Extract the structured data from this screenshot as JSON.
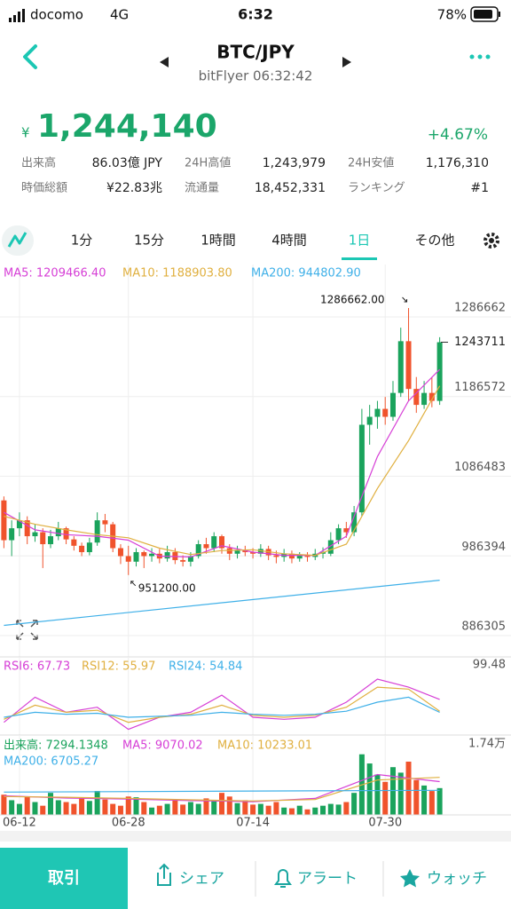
{
  "status_bar": {
    "carrier": "docomo",
    "network": "4G",
    "time": "6:32",
    "battery": "78%"
  },
  "header": {
    "pair": "BTC/JPY",
    "subtitle": "bitFlyer 06:32:42"
  },
  "quote": {
    "currency": "¥",
    "price": "1,244,140",
    "change": "+4.67%",
    "stats": [
      [
        "出来高",
        "86.03億 JPY",
        "24H高値",
        "1,243,979",
        "24H安値",
        "1,176,310"
      ],
      [
        "時価総額",
        "¥22.83兆",
        "流通量",
        "18,452,331",
        "ランキング",
        "#1"
      ]
    ]
  },
  "tabs": {
    "items": [
      "1分",
      "15分",
      "1時間",
      "4時間",
      "1日",
      "その他"
    ],
    "active": 4
  },
  "chart_data": [
    {
      "type": "candlestick",
      "up_color": "#1aa35c",
      "down_color": "#f0532c",
      "xlim": [
        -0.5,
        56.5
      ],
      "ylim": [
        848400,
        1341300
      ],
      "yticks": [
        1286662,
        1186572,
        1086483,
        986394,
        886305
      ],
      "current_price": 1243711,
      "high_label": {
        "index": 52,
        "value": 1286662,
        "label": "1286662.00"
      },
      "low_label": {
        "index": 16,
        "value": 951200,
        "label": "951200.00"
      },
      "candles": [
        [
          1045000,
          1050000,
          985000,
          995000
        ],
        [
          995000,
          1020000,
          975000,
          1010000
        ],
        [
          1010000,
          1030000,
          1000000,
          1020000
        ],
        [
          1020000,
          1025000,
          990000,
          1000000
        ],
        [
          1000000,
          1015000,
          993000,
          1005000
        ],
        [
          1005000,
          1010000,
          960000,
          990000
        ],
        [
          990000,
          1008000,
          985000,
          1000000
        ],
        [
          1000000,
          1018000,
          995000,
          1010000
        ],
        [
          1010000,
          1012000,
          990000,
          996000
        ],
        [
          996000,
          1000000,
          982000,
          988000
        ],
        [
          988000,
          992000,
          975000,
          980000
        ],
        [
          980000,
          998000,
          976000,
          992000
        ],
        [
          992000,
          1030000,
          988000,
          1020000
        ],
        [
          1020000,
          1028000,
          1005000,
          1015000
        ],
        [
          1015000,
          1018000,
          980000,
          985000
        ],
        [
          985000,
          990000,
          965000,
          975000
        ],
        [
          975000,
          988000,
          951200,
          968000
        ],
        [
          968000,
          985000,
          962000,
          980000
        ],
        [
          980000,
          982000,
          960000,
          975000
        ],
        [
          975000,
          985000,
          968000,
          978000
        ],
        [
          978000,
          984000,
          966000,
          972000
        ],
        [
          972000,
          988000,
          968000,
          980000
        ],
        [
          980000,
          985000,
          965000,
          970000
        ],
        [
          970000,
          976000,
          962000,
          968000
        ],
        [
          968000,
          980000,
          962000,
          975000
        ],
        [
          975000,
          995000,
          972000,
          990000
        ],
        [
          990000,
          998000,
          978000,
          985000
        ],
        [
          985000,
          1005000,
          980000,
          1000000
        ],
        [
          1000000,
          1002000,
          978000,
          985000
        ],
        [
          985000,
          990000,
          970000,
          978000
        ],
        [
          978000,
          988000,
          972000,
          982000
        ],
        [
          982000,
          988000,
          975000,
          980000
        ],
        [
          980000,
          985000,
          972000,
          978000
        ],
        [
          978000,
          990000,
          974000,
          984000
        ],
        [
          984000,
          988000,
          970000,
          976000
        ],
        [
          976000,
          982000,
          966000,
          974000
        ],
        [
          974000,
          984000,
          968000,
          978000
        ],
        [
          978000,
          982000,
          966000,
          972000
        ],
        [
          972000,
          980000,
          968000,
          976000
        ],
        [
          976000,
          980000,
          968000,
          974000
        ],
        [
          974000,
          984000,
          970000,
          978000
        ],
        [
          978000,
          986000,
          972000,
          980000
        ],
        [
          978000,
          1005000,
          975000,
          995000
        ],
        [
          995000,
          1015000,
          990000,
          1010000
        ],
        [
          1010000,
          1018000,
          998000,
          1005000
        ],
        [
          1005000,
          1038000,
          1000000,
          1030000
        ],
        [
          1030000,
          1160000,
          1025000,
          1140000
        ],
        [
          1140000,
          1165000,
          1115000,
          1150000
        ],
        [
          1150000,
          1170000,
          1135000,
          1160000
        ],
        [
          1160000,
          1175000,
          1140000,
          1150000
        ],
        [
          1150000,
          1195000,
          1145000,
          1180000
        ],
        [
          1180000,
          1262000,
          1175000,
          1245000
        ],
        [
          1245000,
          1286662,
          1170000,
          1185000
        ],
        [
          1185000,
          1200000,
          1155000,
          1165000
        ],
        [
          1165000,
          1195000,
          1160000,
          1180000
        ],
        [
          1180000,
          1200000,
          1162000,
          1170000
        ],
        [
          1170000,
          1250000,
          1165000,
          1243711
        ]
      ],
      "series": [
        {
          "name": "MA5: 1209466.40",
          "color": "#d63fd6",
          "x": [
            0,
            4,
            8,
            12,
            16,
            20,
            24,
            28,
            32,
            36,
            40,
            44,
            48,
            52,
            56
          ],
          "values": [
            1030000,
            1008000,
            1002000,
            1000000,
            995000,
            975000,
            974000,
            988000,
            980000,
            976000,
            976000,
            1000000,
            1100000,
            1170000,
            1209466.4
          ]
        },
        {
          "name": "MA10: 1188903.80",
          "color": "#e0b040",
          "x": [
            0,
            4,
            8,
            12,
            16,
            20,
            24,
            28,
            32,
            36,
            40,
            44,
            48,
            52,
            56
          ],
          "values": [
            1025000,
            1015000,
            1008000,
            1002000,
            998000,
            985000,
            977000,
            982000,
            983000,
            978000,
            976000,
            990000,
            1060000,
            1120000,
            1188903.8
          ]
        },
        {
          "name": "MA200: 944802.90",
          "color": "#3fb0e8",
          "x": [
            0,
            56
          ],
          "values": [
            888000,
            944802.9
          ]
        }
      ]
    },
    {
      "type": "line",
      "xlim": [
        -0.5,
        56.5
      ],
      "ylim": [
        35,
        99.48
      ],
      "yticks": [
        99.48
      ],
      "series": [
        {
          "name": "RSI6: 67.73",
          "color": "#d63fd6",
          "x": [
            0,
            4,
            8,
            12,
            16,
            20,
            24,
            28,
            32,
            36,
            40,
            44,
            48,
            52,
            56
          ],
          "values": [
            45,
            70,
            55,
            60,
            38,
            50,
            55,
            72,
            50,
            48,
            50,
            65,
            88,
            80,
            67.73
          ]
        },
        {
          "name": "RSI12: 55.97",
          "color": "#e0b040",
          "x": [
            0,
            4,
            8,
            12,
            16,
            20,
            24,
            28,
            32,
            36,
            40,
            44,
            48,
            52,
            56
          ],
          "values": [
            48,
            62,
            55,
            57,
            45,
            50,
            53,
            62,
            52,
            50,
            52,
            60,
            80,
            78,
            55.97
          ]
        },
        {
          "name": "RSI24: 54.84",
          "color": "#3fb0e8",
          "x": [
            0,
            4,
            8,
            12,
            16,
            20,
            24,
            28,
            32,
            36,
            40,
            44,
            48,
            52,
            56
          ],
          "values": [
            50,
            55,
            53,
            54,
            50,
            51,
            52,
            55,
            53,
            52,
            53,
            56,
            65,
            70,
            54.84
          ]
        }
      ]
    },
    {
      "type": "bar",
      "name": "出来高: 7294.1348",
      "color": "#1aa35c",
      "xlim": [
        -0.5,
        56.5
      ],
      "ylim": [
        0,
        17400
      ],
      "yticks": [
        {
          "value": 17400,
          "label": "1.74万"
        }
      ],
      "xticks": [
        {
          "value": 2,
          "label": "06-12"
        },
        {
          "value": 16,
          "label": "06-28"
        },
        {
          "value": 32,
          "label": "07-14"
        },
        {
          "value": 49,
          "label": "07-30"
        }
      ],
      "values": [
        5500,
        4000,
        3000,
        5000,
        3500,
        2500,
        6000,
        4000,
        3500,
        3000,
        4500,
        3800,
        6500,
        4200,
        3000,
        2500,
        5000,
        4800,
        3500,
        2000,
        2500,
        3000,
        4000,
        2800,
        3500,
        3000,
        4500,
        3800,
        6000,
        5000,
        3200,
        4000,
        2800,
        3000,
        2500,
        3500,
        2000,
        1800,
        2500,
        1500,
        2000,
        2500,
        3000,
        2800,
        3500,
        6000,
        16500,
        14000,
        11000,
        9000,
        13000,
        11500,
        14500,
        9500,
        8000,
        6500,
        7294.1348
      ],
      "series": [
        {
          "name": "MA5: 9070.02",
          "color": "#d63fd6",
          "x": [
            0,
            8,
            16,
            24,
            32,
            40,
            48,
            56
          ],
          "values": [
            5200,
            4600,
            4300,
            3900,
            3600,
            4500,
            11000,
            9070.02
          ]
        },
        {
          "name": "MA10: 10233.01",
          "color": "#e0b040",
          "x": [
            0,
            8,
            16,
            24,
            32,
            40,
            48,
            56
          ],
          "values": [
            5000,
            4800,
            4500,
            4100,
            3800,
            4200,
            9500,
            10233.01
          ]
        },
        {
          "name": "MA200: 6705.27",
          "color": "#3fb0e8",
          "x": [
            0,
            56
          ],
          "values": [
            6200,
            6705.27
          ]
        }
      ]
    }
  ],
  "toolbar": {
    "trade": "取引",
    "share": "シェア",
    "alert": "アラート",
    "watch": "ウォッチ"
  }
}
